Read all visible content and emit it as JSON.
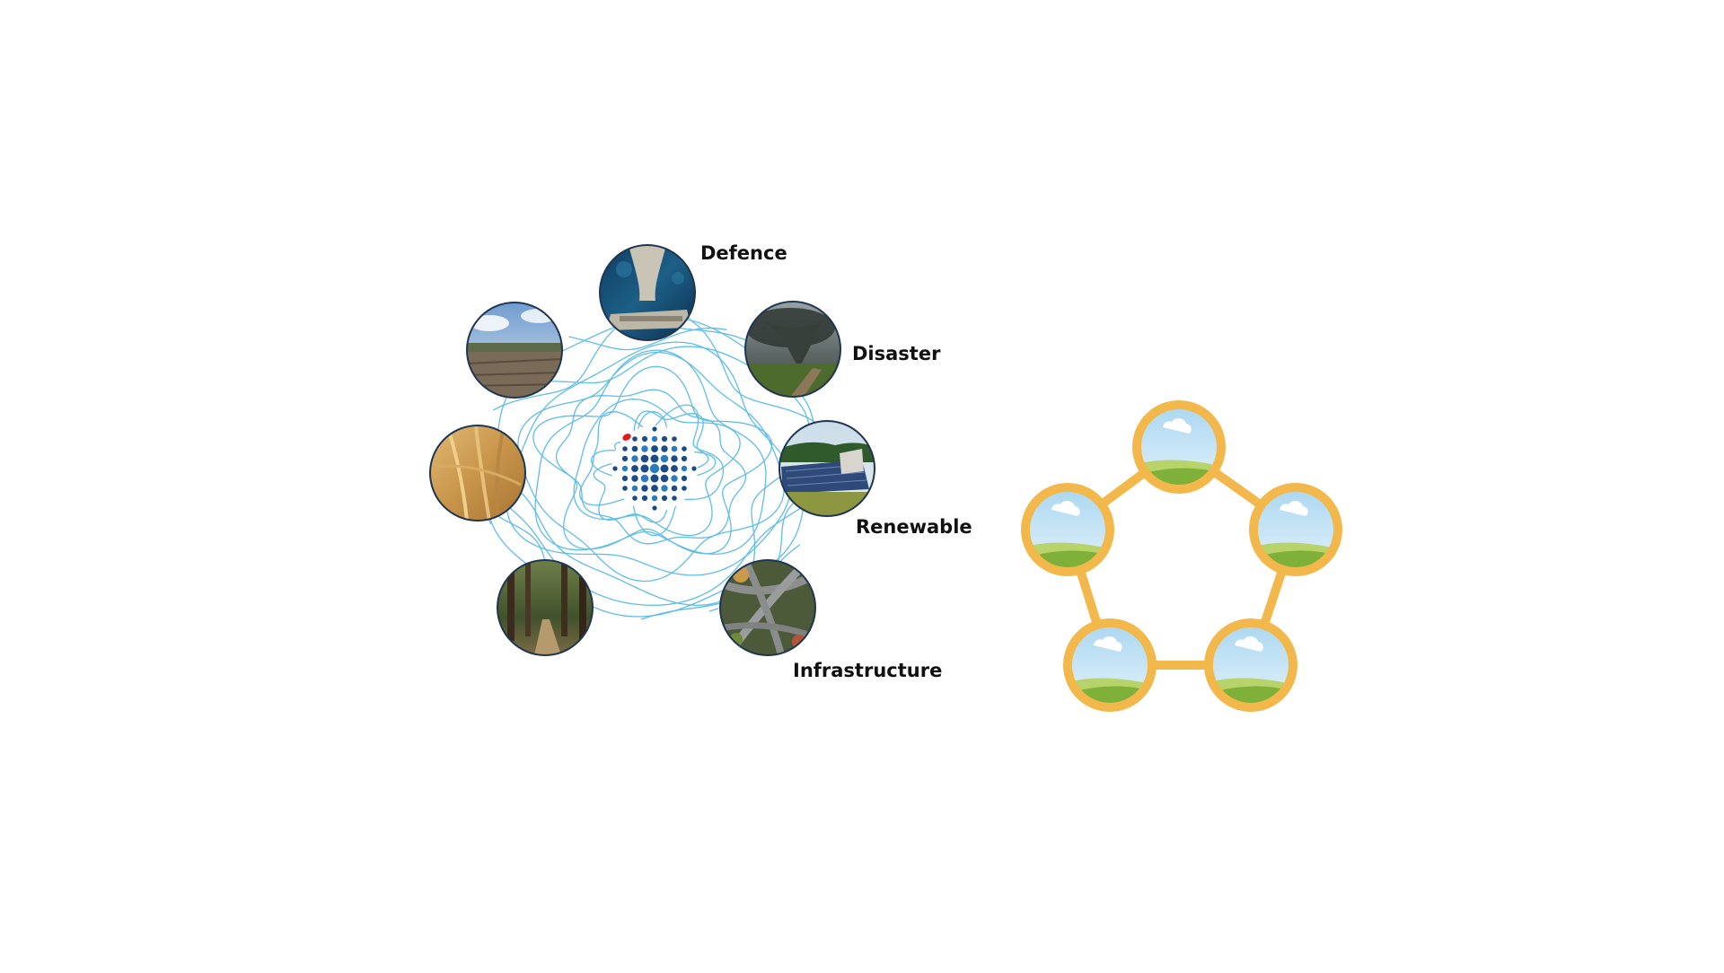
{
  "labels": {
    "defence": "Defence",
    "disaster": "Disaster",
    "renewable": "Renewable",
    "infrastructure": "Infrastructure"
  },
  "images": [
    {
      "name": "defence-aerial-image",
      "subject": "aerial view of ship on dark blue water"
    },
    {
      "name": "disaster-tornado-image",
      "subject": "tornado funnel over green field"
    },
    {
      "name": "renewable-solar-image",
      "subject": "solar panels on farm building with forest"
    },
    {
      "name": "infrastructure-highway-image",
      "subject": "aerial view of highway interchange"
    },
    {
      "name": "forest-path-image",
      "subject": "forest trail between tall trees"
    },
    {
      "name": "wheat-field-image",
      "subject": "golden wheat stalks"
    },
    {
      "name": "mining-landscape-image",
      "subject": "open-pit mine landscape under cloudy sky"
    }
  ],
  "center": {
    "logo": "dot-sphere-logo",
    "background": "contour-lines-pattern"
  },
  "placeholder_graph": {
    "nodes": 5,
    "node_icon": "landscape-placeholder-icon"
  },
  "colors": {
    "contour": "#4fb6e6",
    "logo_blue_dark": "#1b4a86",
    "logo_blue_light": "#2b7bbf",
    "logo_red": "#e11b22",
    "ring_stroke": "#1f3550",
    "node_ring": "#f2b84b",
    "node_sky": "#cfe8f6",
    "node_grass": "#7fb03a"
  }
}
